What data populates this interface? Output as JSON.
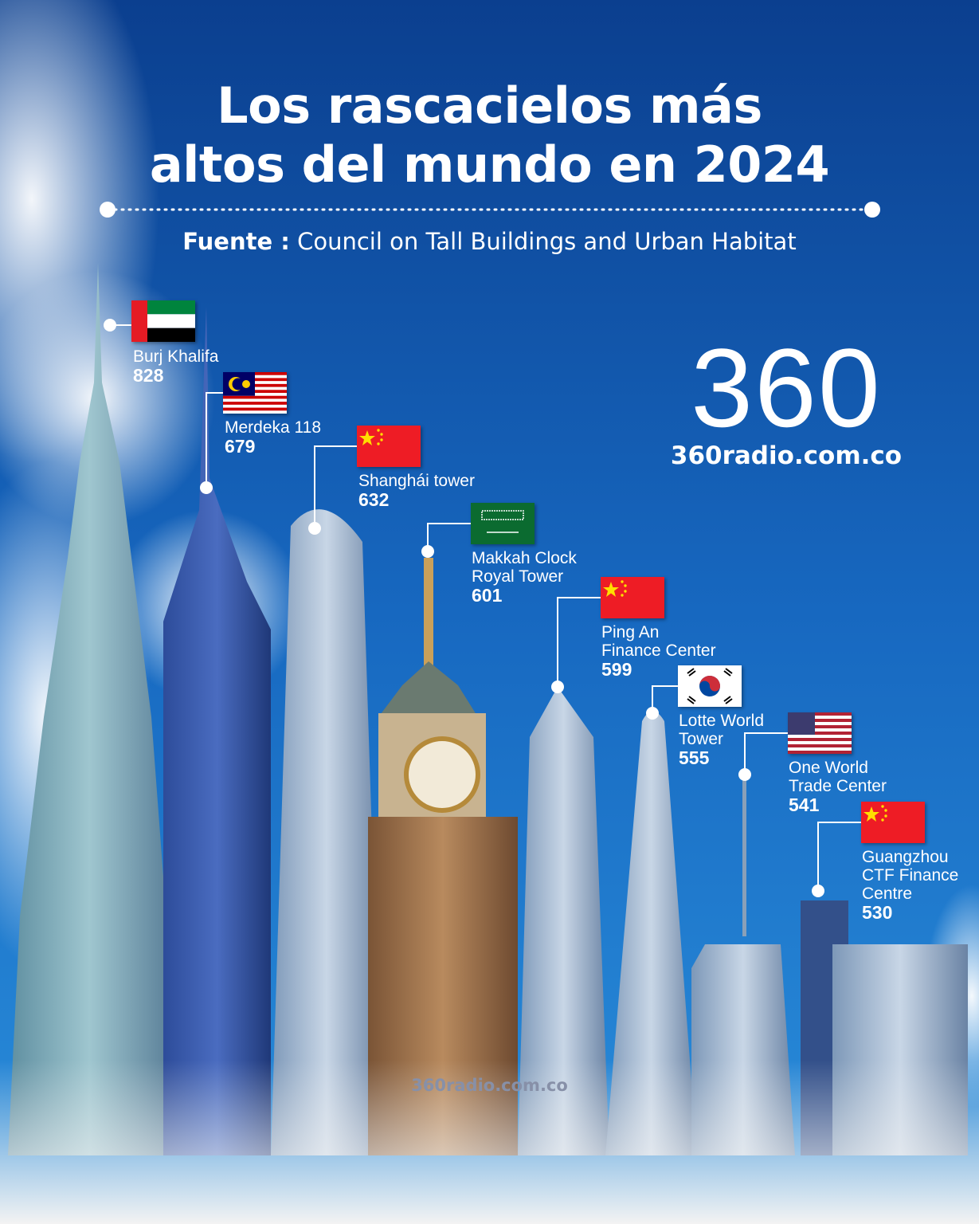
{
  "title": {
    "line1": "Los rascacielos más",
    "line2": "altos del mundo en 2024"
  },
  "source": {
    "label": "Fuente :",
    "text": "Council on Tall Buildings and Urban Habitat"
  },
  "brand": {
    "logo": "360",
    "url": "360radio.com.co",
    "watermark": "360radio.com.co"
  },
  "colors": {
    "sky_top": "#0b3f8f",
    "sky_bottom": "#1f86d6",
    "text": "#ffffff"
  },
  "buildings": [
    {
      "name_lines": [
        "Burj Khalifa"
      ],
      "height": "828",
      "flag": "uae-flag"
    },
    {
      "name_lines": [
        "Merdeka 118"
      ],
      "height": "679",
      "flag": "malaysia-flag"
    },
    {
      "name_lines": [
        "Shanghái tower"
      ],
      "height": "632",
      "flag": "china-flag"
    },
    {
      "name_lines": [
        "Makkah Clock",
        "Royal Tower"
      ],
      "height": "601",
      "flag": "saudi-arabia-flag"
    },
    {
      "name_lines": [
        "Ping An",
        "Finance Center"
      ],
      "height": "599",
      "flag": "china-flag"
    },
    {
      "name_lines": [
        "Lotte World",
        "Tower"
      ],
      "height": "555",
      "flag": "south-korea-flag"
    },
    {
      "name_lines": [
        "One World",
        "Trade Center"
      ],
      "height": "541",
      "flag": "usa-flag"
    },
    {
      "name_lines": [
        "Guangzhou",
        "CTF Finance",
        "Centre"
      ],
      "height": "530",
      "flag": "china-flag"
    }
  ]
}
